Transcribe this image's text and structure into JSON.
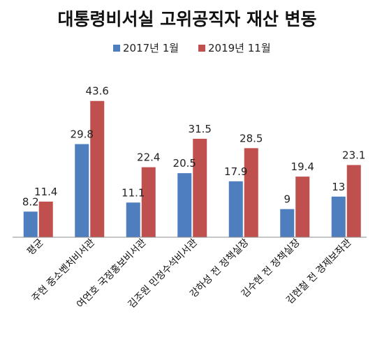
{
  "chart_data": {
    "type": "bar",
    "title": "대통령비서실 고위공직자 재산 변동",
    "categories": [
      "평균",
      "주현 중소벤처비서관",
      "여연호 국정홍보비서관",
      "김조원 민정수석비서관",
      "강하성 전 정책실장",
      "김수현 전 정책실장",
      "김현철 전 경제보좌관"
    ],
    "series": [
      {
        "name": "2017년 1월",
        "color": "#4F7EBF",
        "values": [
          8.2,
          29.8,
          11.1,
          20.5,
          17.9,
          9,
          13
        ]
      },
      {
        "name": "2019년 11월",
        "color": "#C0504D",
        "values": [
          11.4,
          43.6,
          22.4,
          31.5,
          28.5,
          19.4,
          23.1
        ]
      }
    ],
    "value_labels": [
      [
        "8.2",
        "29.8",
        "11.1",
        "20.5",
        "17.9",
        "9",
        "13"
      ],
      [
        "11.4",
        "43.6",
        "22.4",
        "31.5",
        "28.5",
        "19.4",
        "23.1"
      ]
    ],
    "ylim": [
      0,
      48
    ],
    "grid": false,
    "legend_position": "top"
  }
}
